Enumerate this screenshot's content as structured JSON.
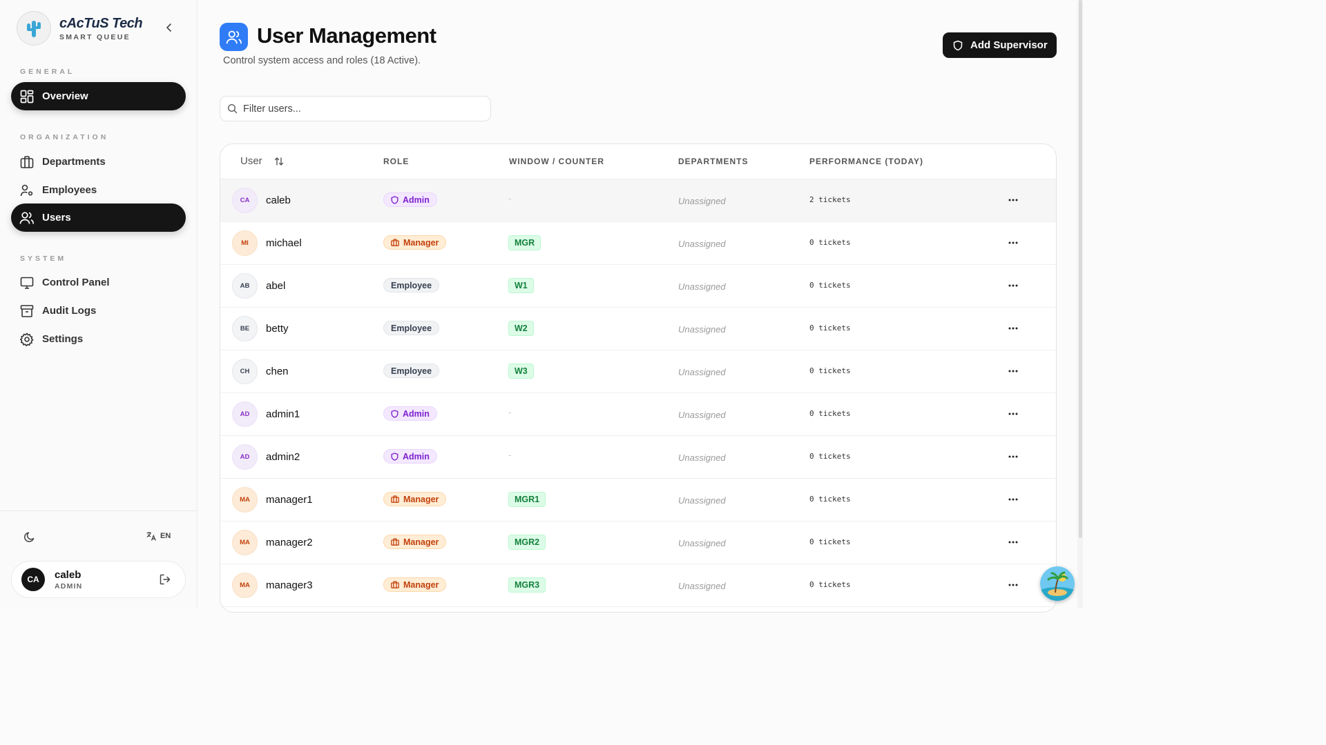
{
  "brand": {
    "name": "cAcTuS Tech",
    "subtitle": "SMART QUEUE"
  },
  "sidebar": {
    "sections": [
      {
        "label": "GENERAL"
      },
      {
        "label": "ORGANIZATION"
      },
      {
        "label": "SYSTEM"
      }
    ],
    "items": [
      {
        "label": "Overview",
        "icon": "grid-icon",
        "active": true
      },
      {
        "label": "Departments",
        "icon": "briefcase-icon",
        "active": false
      },
      {
        "label": "Employees",
        "icon": "user-cog-icon",
        "active": false
      },
      {
        "label": "Users",
        "icon": "users-icon",
        "active": true
      },
      {
        "label": "Control Panel",
        "icon": "monitor-icon",
        "active": false
      },
      {
        "label": "Audit Logs",
        "icon": "archive-icon",
        "active": false
      },
      {
        "label": "Settings",
        "icon": "gear-icon",
        "active": false
      }
    ],
    "language": "EN",
    "profile": {
      "initials": "CA",
      "name": "caleb",
      "role": "ADMIN"
    }
  },
  "header": {
    "title": "User Management",
    "subtitle": "Control system access and roles (18 Active).",
    "add_button": "Add Supervisor"
  },
  "search": {
    "placeholder": "Filter users...",
    "value": ""
  },
  "table": {
    "columns": {
      "user": "User",
      "role": "ROLE",
      "window": "WINDOW / COUNTER",
      "departments": "DEPARTMENTS",
      "performance": "PERFORMANCE (TODAY)"
    },
    "rows": [
      {
        "initials": "CA",
        "name": "caleb",
        "role": "Admin",
        "role_type": "admin",
        "window": "-",
        "departments": "Unassigned",
        "performance": "2 tickets"
      },
      {
        "initials": "MI",
        "name": "michael",
        "role": "Manager",
        "role_type": "manager",
        "window": "MGR",
        "departments": "Unassigned",
        "performance": "0 tickets"
      },
      {
        "initials": "AB",
        "name": "abel",
        "role": "Employee",
        "role_type": "employee",
        "window": "W1",
        "departments": "Unassigned",
        "performance": "0 tickets"
      },
      {
        "initials": "BE",
        "name": "betty",
        "role": "Employee",
        "role_type": "employee",
        "window": "W2",
        "departments": "Unassigned",
        "performance": "0 tickets"
      },
      {
        "initials": "CH",
        "name": "chen",
        "role": "Employee",
        "role_type": "employee",
        "window": "W3",
        "departments": "Unassigned",
        "performance": "0 tickets"
      },
      {
        "initials": "AD",
        "name": "admin1",
        "role": "Admin",
        "role_type": "admin",
        "window": "-",
        "departments": "Unassigned",
        "performance": "0 tickets"
      },
      {
        "initials": "AD",
        "name": "admin2",
        "role": "Admin",
        "role_type": "admin",
        "window": "-",
        "departments": "Unassigned",
        "performance": "0 tickets"
      },
      {
        "initials": "MA",
        "name": "manager1",
        "role": "Manager",
        "role_type": "manager",
        "window": "MGR1",
        "departments": "Unassigned",
        "performance": "0 tickets"
      },
      {
        "initials": "MA",
        "name": "manager2",
        "role": "Manager",
        "role_type": "manager",
        "window": "MGR2",
        "departments": "Unassigned",
        "performance": "0 tickets"
      },
      {
        "initials": "MA",
        "name": "manager3",
        "role": "Manager",
        "role_type": "manager",
        "window": "MGR3",
        "departments": "Unassigned",
        "performance": "0 tickets"
      }
    ]
  },
  "colors": {
    "accent": "#2f7cf6",
    "dark": "#151515",
    "admin": "#7e22ce",
    "manager": "#c2410c",
    "window": "#15803d"
  }
}
